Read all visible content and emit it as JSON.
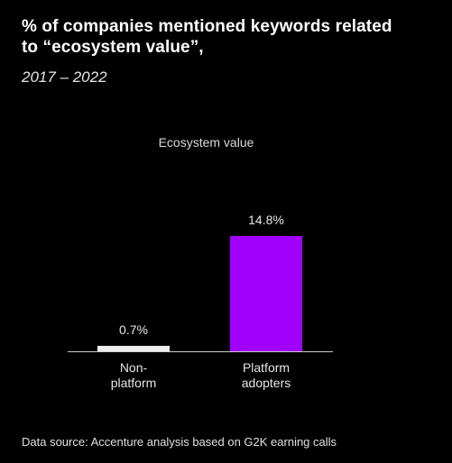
{
  "header": {
    "title_line1": "% of companies mentioned keywords related",
    "title_line2": "to “ecosystem value”,",
    "subtitle": "2017 – 2022"
  },
  "footer": {
    "source": "Data source: Accenture analysis based on G2K earning calls"
  },
  "colors": {
    "background": "#000000",
    "non_platform_bar": "#efefef",
    "platform_bar": "#a100ff",
    "axis": "#cccccc"
  },
  "chart_data": {
    "type": "bar",
    "title": "Ecosystem value",
    "categories": [
      [
        "Non-",
        "platform"
      ],
      [
        "Platform",
        "adopters"
      ]
    ],
    "values": [
      0.7,
      14.8
    ],
    "data_labels": [
      "0.7%",
      "14.8%"
    ],
    "ylim": [
      0,
      14.8
    ],
    "grid": false
  }
}
